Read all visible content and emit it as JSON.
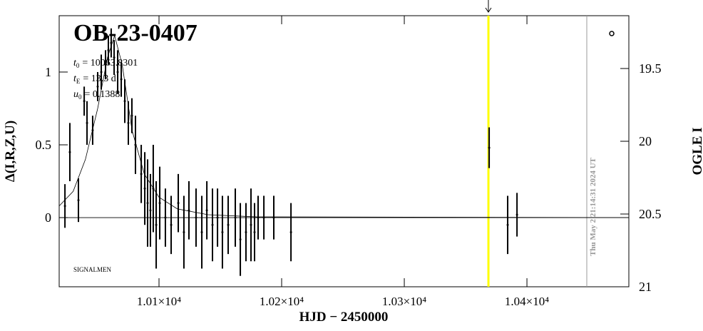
{
  "chart_data": {
    "type": "scatter",
    "title": "OB-23-0407",
    "params": [
      {
        "symbol": "t",
        "sub": "0",
        "text": "= 10063.8301"
      },
      {
        "symbol": "t",
        "sub": "E",
        "text": "= 13.3 d"
      },
      {
        "symbol": "u",
        "sub": "0",
        "text": "= 0.1388"
      }
    ],
    "x_label": "HJD − 2450000",
    "y_label": "Δ(I,R,Z,U)",
    "y2_label": "OGLE I",
    "annotation": "SIGNALMEN",
    "timestamp": "Thu May  2 21:14:31 2024 UT",
    "xlim": [
      10018.6,
      10483.1
    ],
    "xticks": [
      {
        "value": 10100,
        "label": "1.01×10⁴"
      },
      {
        "value": 10200,
        "label": "1.02×10⁴"
      },
      {
        "value": 10300,
        "label": "1.03×10⁴"
      },
      {
        "value": 10400,
        "label": "1.04×10⁴"
      }
    ],
    "ylim": [
      -0.475,
      1.387
    ],
    "yticks": [
      0,
      0.5,
      1
    ],
    "y2lim": [
      21,
      19.137
    ],
    "y2ticks": [
      19.5,
      20,
      20.5,
      21
    ],
    "color": "#000000",
    "points": {
      "x": [
        10023.3,
        10027.3,
        10034.3,
        10039.0,
        10041.3,
        10045.9,
        10050.0,
        10052.9,
        10056.4,
        10058.7,
        10061.0,
        10063.4,
        10066.3,
        10069.2,
        10072.1,
        10075.0,
        10077.9,
        10080.8,
        10085.5,
        10088.4,
        10090.7,
        10093.0,
        10095.3,
        10097.7,
        10100.6,
        10105.2,
        10109.9,
        10115.7,
        10120.3,
        10124.4,
        10130.2,
        10134.9,
        10139.0,
        10143.6,
        10147.7,
        10151.7,
        10156.4,
        10162.2,
        10166.3,
        10170.9,
        10175.0,
        10177.9,
        10180.8,
        10185.5,
        10193.6,
        10207.6,
        10369.2,
        10384.3,
        10391.9
      ],
      "values": [
        0.08,
        0.45,
        0.12,
        0.8,
        0.65,
        0.6,
        0.9,
        1.0,
        1.05,
        1.15,
        1.2,
        1.1,
        1.0,
        0.95,
        0.8,
        0.65,
        0.7,
        0.5,
        0.3,
        0.2,
        0.1,
        0.05,
        0.2,
        -0.05,
        0.1,
        0.0,
        -0.05,
        0.1,
        -0.1,
        0.05,
        0.0,
        -0.1,
        0.05,
        -0.05,
        0.0,
        -0.1,
        -0.05,
        0.0,
        -0.15,
        -0.1,
        -0.05,
        -0.1,
        0.0,
        0.0,
        0.0,
        -0.1,
        0.48,
        -0.05,
        0.02
      ],
      "errors": [
        0.15,
        0.2,
        0.15,
        0.1,
        0.15,
        0.1,
        0.1,
        0.12,
        0.1,
        0.1,
        0.1,
        0.12,
        0.15,
        0.12,
        0.15,
        0.15,
        0.12,
        0.2,
        0.2,
        0.25,
        0.3,
        0.25,
        0.3,
        0.3,
        0.25,
        0.2,
        0.2,
        0.2,
        0.25,
        0.2,
        0.2,
        0.25,
        0.2,
        0.25,
        0.2,
        0.25,
        0.2,
        0.2,
        0.25,
        0.2,
        0.25,
        0.2,
        0.15,
        0.15,
        0.15,
        0.2,
        0.14,
        0.2,
        0.15
      ]
    },
    "model": {
      "x": [
        10018.6,
        10030,
        10040,
        10050,
        10058,
        10063.8,
        10070,
        10078,
        10088,
        10100,
        10115,
        10140,
        10180,
        10483.1
      ],
      "values": [
        0.08,
        0.18,
        0.4,
        0.75,
        1.1,
        1.25,
        1.05,
        0.6,
        0.3,
        0.14,
        0.06,
        0.02,
        0.005,
        0.0
      ]
    },
    "baseline": 0,
    "current_time": 10368.6,
    "current_color": "#ffff00",
    "end_time": 10448.8,
    "end_color": "#999999"
  }
}
